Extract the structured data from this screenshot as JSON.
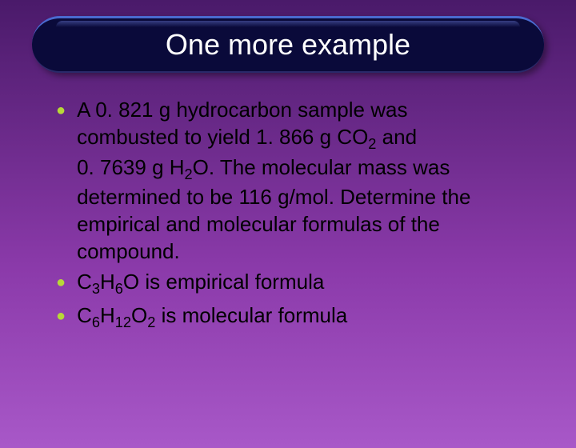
{
  "background_colors": {
    "gradient_top": "#4a1a6a",
    "gradient_mid1": "#6b2a8a",
    "gradient_mid2": "#8b3aaa",
    "gradient_bottom": "#a858c8"
  },
  "title": {
    "text": "One more example",
    "background": "#0a0a3a",
    "text_color": "#ffffff",
    "fontsize": 36,
    "border_radius": 35,
    "highlight_color": "#4a6ad0"
  },
  "bullets": {
    "bullet_color": "#b8d838",
    "text_color": "#000000",
    "fontsize": 26,
    "item1_line1": "A 0. 821 g hydrocarbon sample was",
    "item1_line2": "combusted to yield 1. 866 g CO",
    "item1_line2_sub": "2",
    "item1_line2_tail": " and",
    "item1_line3": "0. 7639 g H",
    "item1_line3_sub": "2",
    "item1_line3_tail": "O. The molecular mass was",
    "item1_line4": "determined to be 116 g/mol. Determine the",
    "item1_line5": "empirical and molecular formulas of the",
    "item1_line6": "compound.",
    "item2_pre": "C",
    "item2_sub1": "3",
    "item2_mid1": "H",
    "item2_sub2": "6",
    "item2_mid2": "O is empirical formula",
    "item3_pre": "C",
    "item3_sub1": "6",
    "item3_mid1": "H",
    "item3_sub2": "12",
    "item3_mid2": "O",
    "item3_sub3": "2",
    "item3_tail": " is molecular formula"
  }
}
